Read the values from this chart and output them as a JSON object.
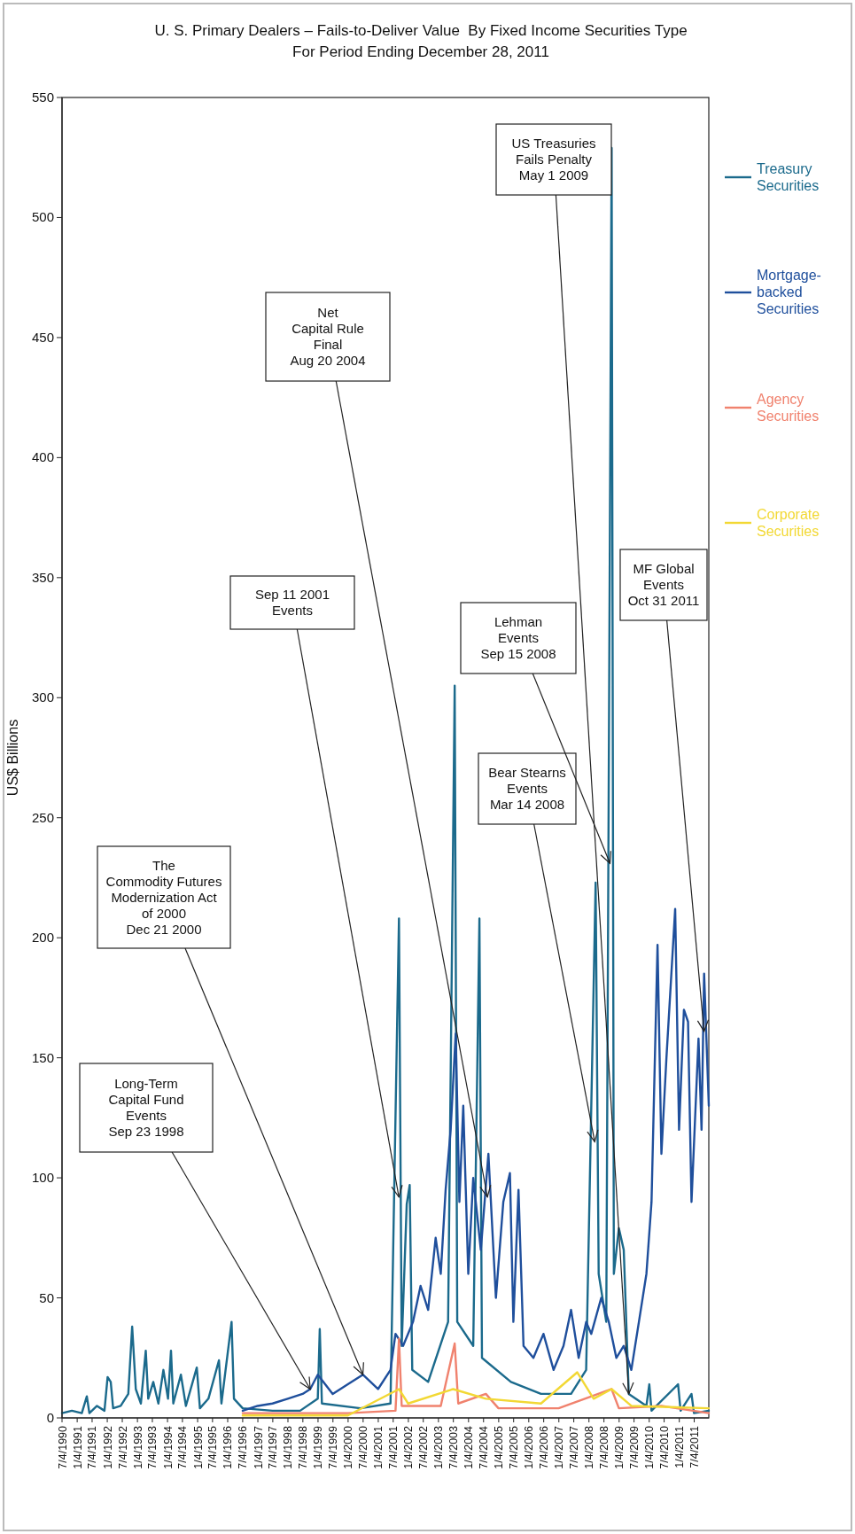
{
  "chart_data": {
    "type": "line",
    "title": "U. S. Primary Dealers – Fails-to-Deliver Value  By Fixed Income Securities Type",
    "subtitle": "For Period Ending December 28, 2011",
    "ylabel": "US$ Billions",
    "xlim": [
      "1990-07-04",
      "2011-12-28"
    ],
    "xticks": [
      {
        "value": "1990-07-04",
        "label": "7/4/1990"
      },
      {
        "value": "1991-01-04",
        "label": "1/4/1991"
      },
      {
        "value": "1991-07-04",
        "label": "7/4/1991"
      },
      {
        "value": "1992-01-04",
        "label": "1/4/1992"
      },
      {
        "value": "1992-07-04",
        "label": "7/4/1992"
      },
      {
        "value": "1993-01-04",
        "label": "1/4/1993"
      },
      {
        "value": "1993-07-04",
        "label": "7/4/1993"
      },
      {
        "value": "1994-01-04",
        "label": "1/4/1994"
      },
      {
        "value": "1994-07-04",
        "label": "7/4/1994"
      },
      {
        "value": "1995-01-04",
        "label": "1/4/1995"
      },
      {
        "value": "1995-07-04",
        "label": "7/4/1995"
      },
      {
        "value": "1996-01-04",
        "label": "1/4/1996"
      },
      {
        "value": "1996-07-04",
        "label": "7/4/1996"
      },
      {
        "value": "1997-01-04",
        "label": "1/4/1997"
      },
      {
        "value": "1997-07-04",
        "label": "7/4/1997"
      },
      {
        "value": "1998-01-04",
        "label": "1/4/1998"
      },
      {
        "value": "1998-07-04",
        "label": "7/4/1998"
      },
      {
        "value": "1999-01-04",
        "label": "1/4/1999"
      },
      {
        "value": "1999-07-04",
        "label": "7/4/1999"
      },
      {
        "value": "2000-01-04",
        "label": "1/4/2000"
      },
      {
        "value": "2000-07-04",
        "label": "7/4/2000"
      },
      {
        "value": "2001-01-04",
        "label": "1/4/2001"
      },
      {
        "value": "2001-07-04",
        "label": "7/4/2001"
      },
      {
        "value": "2002-01-04",
        "label": "1/4/2002"
      },
      {
        "value": "2002-07-04",
        "label": "7/4/2002"
      },
      {
        "value": "2003-01-04",
        "label": "1/4/2003"
      },
      {
        "value": "2003-07-04",
        "label": "7/4/2003"
      },
      {
        "value": "2004-01-04",
        "label": "1/4/2004"
      },
      {
        "value": "2004-07-04",
        "label": "7/4/2004"
      },
      {
        "value": "2005-01-04",
        "label": "1/4/2005"
      },
      {
        "value": "2005-07-04",
        "label": "7/4/2005"
      },
      {
        "value": "2006-01-04",
        "label": "1/4/2006"
      },
      {
        "value": "2006-07-04",
        "label": "7/4/2006"
      },
      {
        "value": "2007-01-04",
        "label": "1/4/2007"
      },
      {
        "value": "2007-07-04",
        "label": "7/4/2007"
      },
      {
        "value": "2008-01-04",
        "label": "1/4/2008"
      },
      {
        "value": "2008-07-04",
        "label": "7/4/2008"
      },
      {
        "value": "2009-01-04",
        "label": "1/4/2009"
      },
      {
        "value": "2009-07-04",
        "label": "7/4/2009"
      },
      {
        "value": "2010-01-04",
        "label": "1/4/2010"
      },
      {
        "value": "2010-07-04",
        "label": "7/4/2010"
      },
      {
        "value": "2011-01-04",
        "label": "1/4/2011"
      },
      {
        "value": "2011-07-04",
        "label": "7/4/2011"
      }
    ],
    "ylim": [
      0,
      550
    ],
    "yticks": [
      0,
      50,
      100,
      150,
      200,
      250,
      300,
      350,
      400,
      450,
      500,
      550
    ],
    "legend": "right",
    "series": [
      {
        "name": "Treasury Securities",
        "color": "#1b6a8c",
        "x": [
          "1990-07-04",
          "1990-11-01",
          "1991-03-01",
          "1991-05-01",
          "1991-06-01",
          "1991-09-01",
          "1991-12-01",
          "1992-01-08",
          "1992-02-15",
          "1992-03-15",
          "1992-06-15",
          "1992-09-15",
          "1992-11-01",
          "1992-12-15",
          "1993-02-15",
          "1993-04-15",
          "1993-05-15",
          "1993-07-15",
          "1993-09-15",
          "1993-11-15",
          "1994-01-10",
          "1994-02-15",
          "1994-03-15",
          "1994-06-15",
          "1994-08-15",
          "1994-12-25",
          "1995-02-01",
          "1995-05-15",
          "1995-09-20",
          "1995-10-20",
          "1996-02-20",
          "1996-03-20",
          "1996-07-04",
          "1997-07-01",
          "1998-06-01",
          "1999-01-01",
          "1999-01-25",
          "1999-02-20",
          "2000-06-01",
          "2001-06-01",
          "2001-09-12",
          "2001-10-15",
          "2001-12-15",
          "2002-01-20",
          "2002-02-20",
          "2002-09-01",
          "2003-05-01",
          "2003-07-20",
          "2003-08-20",
          "2004-03-01",
          "2004-05-15",
          "2004-06-15",
          "2005-06-01",
          "2006-06-01",
          "2007-06-01",
          "2007-12-01",
          "2008-03-25",
          "2008-05-01",
          "2008-08-01",
          "2008-10-05",
          "2008-11-01",
          "2009-01-01",
          "2009-03-01",
          "2009-05-01",
          "2009-12-01",
          "2010-01-05",
          "2010-02-01",
          "2010-12-20",
          "2011-01-20",
          "2011-06-01",
          "2011-07-01",
          "2011-12-28"
        ],
        "values": [
          2,
          3,
          2,
          9,
          2,
          5,
          3,
          17,
          15,
          4,
          5,
          10,
          38,
          12,
          6,
          28,
          8,
          15,
          6,
          20,
          8,
          28,
          6,
          18,
          5,
          21,
          4,
          8,
          24,
          6,
          40,
          8,
          4,
          3,
          3,
          8,
          37,
          6,
          4,
          6,
          208,
          30,
          89,
          97,
          20,
          15,
          40,
          305,
          40,
          30,
          208,
          25,
          15,
          10,
          10,
          20,
          223,
          60,
          40,
          529,
          60,
          79,
          70,
          10,
          5,
          14,
          3,
          14,
          3,
          10,
          2,
          3
        ]
      },
      {
        "name": "Mortgage-backed Securities",
        "color": "#1f4f9c",
        "x": [
          "1996-07-04",
          "1997-01-01",
          "1997-07-01",
          "1998-01-01",
          "1998-07-01",
          "1998-10-01",
          "1999-01-01",
          "1999-07-01",
          "2000-01-01",
          "2000-07-01",
          "2001-01-01",
          "2001-06-01",
          "2001-08-01",
          "2001-11-01",
          "2002-03-01",
          "2002-06-01",
          "2002-09-01",
          "2002-12-01",
          "2003-02-01",
          "2003-04-01",
          "2003-06-01",
          "2003-08-01",
          "2003-09-15",
          "2003-11-01",
          "2004-01-01",
          "2004-03-01",
          "2004-06-01",
          "2004-09-01",
          "2004-12-01",
          "2005-03-01",
          "2005-05-20",
          "2005-07-01",
          "2005-09-01",
          "2005-11-01",
          "2006-03-01",
          "2006-07-01",
          "2006-11-01",
          "2007-03-01",
          "2007-06-01",
          "2007-09-01",
          "2007-12-01",
          "2008-02-01",
          "2008-06-01",
          "2008-09-01",
          "2008-12-01",
          "2009-03-01",
          "2009-06-01",
          "2009-09-01",
          "2009-12-01",
          "2010-02-01",
          "2010-04-15",
          "2010-06-01",
          "2010-08-01",
          "2010-11-15",
          "2011-01-01",
          "2011-03-01",
          "2011-04-20",
          "2011-06-01",
          "2011-08-25",
          "2011-10-01",
          "2011-11-01",
          "2011-12-28"
        ],
        "values": [
          3,
          5,
          6,
          8,
          10,
          12,
          18,
          10,
          14,
          18,
          12,
          20,
          35,
          30,
          40,
          55,
          45,
          75,
          60,
          95,
          120,
          160,
          90,
          130,
          60,
          100,
          70,
          110,
          50,
          90,
          102,
          40,
          95,
          30,
          25,
          35,
          20,
          30,
          45,
          25,
          40,
          35,
          50,
          40,
          25,
          30,
          20,
          40,
          60,
          90,
          197,
          110,
          150,
          212,
          120,
          170,
          165,
          90,
          158,
          120,
          185,
          130
        ]
      },
      {
        "name": "Agency Securities",
        "color": "#f0826e",
        "x": [
          "1996-07-04",
          "1998-01-01",
          "2000-01-01",
          "2001-08-01",
          "2001-09-12",
          "2001-10-15",
          "2003-02-01",
          "2003-07-20",
          "2003-09-01",
          "2004-08-01",
          "2005-01-01",
          "2007-01-01",
          "2008-10-05",
          "2009-01-01",
          "2010-06-01",
          "2011-12-28"
        ],
        "values": [
          2,
          2,
          2,
          3,
          33,
          5,
          5,
          31,
          6,
          10,
          4,
          4,
          12,
          4,
          5,
          2
        ]
      },
      {
        "name": "Corporate Securities",
        "color": "#f2d834",
        "x": [
          "1996-07-04",
          "2000-01-01",
          "2001-09-12",
          "2002-01-01",
          "2003-07-01",
          "2004-08-01",
          "2006-06-01",
          "2007-08-15",
          "2008-03-01",
          "2008-10-05",
          "2009-06-01",
          "2011-12-28"
        ],
        "values": [
          1,
          1,
          12,
          6,
          12,
          8,
          6,
          19,
          8,
          12,
          5,
          4
        ]
      }
    ],
    "annotations": [
      {
        "text": "Long-Term\nCapital Fund\nEvents\nSep 23 1998",
        "x": "1998-10-01",
        "y": 12
      },
      {
        "text": "The\nCommodity Futures\nModernization Act\nof 2000\nDec 21 2000",
        "x": "2000-07-01",
        "y": 18
      },
      {
        "text": "Sep 11 2001\nEvents",
        "x": "2001-09-11",
        "y": 92
      },
      {
        "text": "Net\nCapital Rule\nFinal\nAug 20 2004",
        "x": "2004-08-20",
        "y": 92
      },
      {
        "text": "Bear Stearns\nEvents\nMar 14 2008",
        "x": "2008-03-14",
        "y": 115
      },
      {
        "text": "Lehman\nEvents\nSep 15 2008",
        "x": "2008-09-15",
        "y": 231
      },
      {
        "text": "US Treasuries\nFails Penalty\nMay 1 2009",
        "x": "2009-05-01",
        "y": 10
      },
      {
        "text": "MF Global\nEvents\nOct 31 2011",
        "x": "2011-10-31",
        "y": 161
      }
    ]
  }
}
